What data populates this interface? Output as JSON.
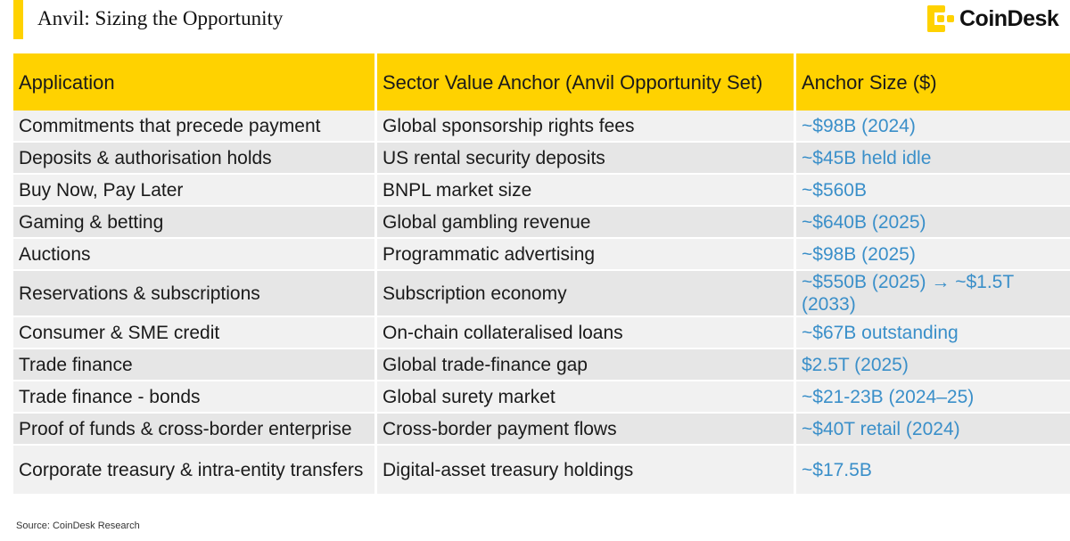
{
  "header": {
    "title": "Anvil: Sizing the Opportunity"
  },
  "logo": {
    "text": "CoinDesk",
    "icon": "coindesk-logo-icon",
    "accent": "#ffd200"
  },
  "table": {
    "columns": [
      "Application",
      "Sector Value Anchor (Anvil Opportunity Set)",
      "Anchor Size ($)"
    ],
    "rows": [
      {
        "application": "Commitments that precede payment",
        "anchor": "Global sponsorship rights fees",
        "size": "~$98B (2024)"
      },
      {
        "application": "Deposits & authorisation holds",
        "anchor": "US rental security deposits",
        "size": "~$45B held idle"
      },
      {
        "application": "Buy Now, Pay Later",
        "anchor": "BNPL market size",
        "size": "~$560B"
      },
      {
        "application": "Gaming & betting",
        "anchor": "Global gambling revenue",
        "size": "~$640B (2025)"
      },
      {
        "application": "Auctions",
        "anchor": "Programmatic advertising",
        "size": "~$98B (2025)"
      },
      {
        "application": "Reservations & subscriptions",
        "anchor": "Subscription economy",
        "size": "~$550B (2025) → ~$1.5T (2033)"
      },
      {
        "application": "Consumer & SME credit",
        "anchor": "On-chain collateralised loans",
        "size": "~$67B outstanding"
      },
      {
        "application": "Trade finance",
        "anchor": "Global trade-finance gap",
        "size": "$2.5T (2025)"
      },
      {
        "application": "Trade finance - bonds",
        "anchor": "Global surety market",
        "size": "~$21-23B (2024–25)"
      },
      {
        "application": "Proof of funds & cross-border enterprise",
        "anchor": "Cross-border payment flows",
        "size": "~$40T retail (2024)"
      },
      {
        "application": "Corporate treasury & intra-entity transfers",
        "anchor": "Digital-asset treasury holdings",
        "size": "~$17.5B"
      }
    ],
    "size_color": "#3a8fc9",
    "header_color": "#ffd200"
  },
  "footer": {
    "source": "Source: CoinDesk Research"
  }
}
